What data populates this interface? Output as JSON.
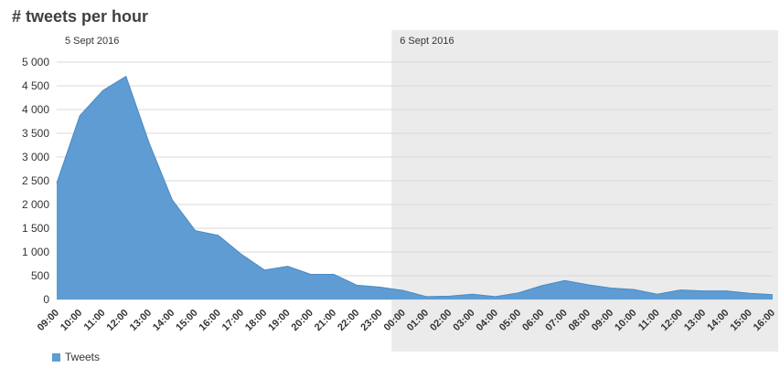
{
  "title": "# tweets per hour",
  "legend": {
    "label": "Tweets"
  },
  "colors": {
    "area": "#5e9cd3",
    "area_line": "#4a8ac4",
    "band_bg": "#ebebeb",
    "grid": "#d9d9d9",
    "axis_text": "#333333",
    "title_text": "#404040"
  },
  "chart_data": {
    "type": "area",
    "title": "# tweets per hour",
    "x_labels": [
      "09:00",
      "10:00",
      "11:00",
      "12:00",
      "13:00",
      "14:00",
      "15:00",
      "16:00",
      "17:00",
      "18:00",
      "19:00",
      "20:00",
      "21:00",
      "22:00",
      "23:00",
      "00:00",
      "01:00",
      "02:00",
      "03:00",
      "04:00",
      "05:00",
      "06:00",
      "07:00",
      "08:00",
      "09:00",
      "10:00",
      "11:00",
      "12:00",
      "13:00",
      "14:00",
      "15:00",
      "16:00"
    ],
    "series": [
      {
        "name": "Tweets",
        "values": [
          2450,
          3870,
          4400,
          4700,
          3300,
          2100,
          1450,
          1350,
          950,
          620,
          700,
          530,
          530,
          300,
          260,
          190,
          60,
          70,
          110,
          60,
          140,
          290,
          400,
          310,
          240,
          210,
          110,
          200,
          180,
          180,
          130,
          100
        ]
      }
    ],
    "ylim": [
      0,
      5000
    ],
    "y_tick_step": 500,
    "y_tick_labels": [
      "0",
      "500",
      "1 000",
      "1 500",
      "2 000",
      "2 500",
      "3 000",
      "3 500",
      "4 000",
      "4 500",
      "5 000"
    ],
    "bands": [
      {
        "label": "5 Sept 2016",
        "start_index": 0,
        "end_index": 14.5,
        "shaded": false
      },
      {
        "label": "6 Sept 2016",
        "start_index": 14.5,
        "end_index": 31,
        "shaded": true
      }
    ],
    "grid": "horizontal",
    "legend_position": "bottom-left"
  }
}
